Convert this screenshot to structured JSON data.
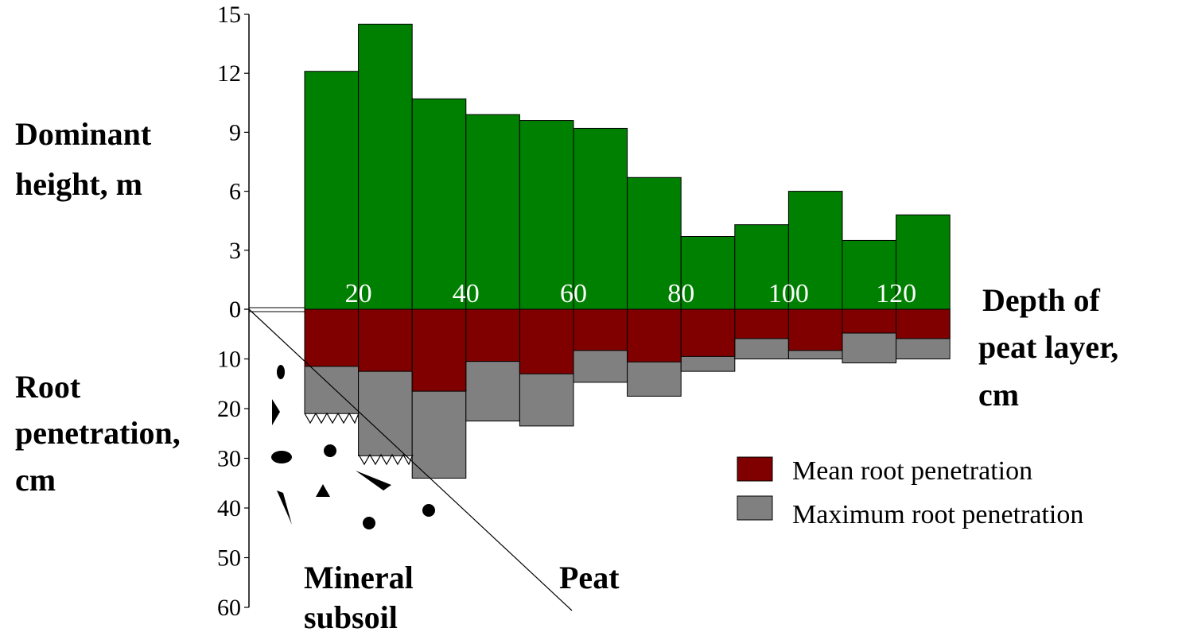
{
  "chart_data": {
    "type": "bar",
    "upper_axis_label": [
      "Dominant",
      "height, m"
    ],
    "lower_axis_label": [
      "Root",
      "penetration,",
      "cm"
    ],
    "x_axis_label": [
      "Depth of",
      "peat layer,",
      "cm"
    ],
    "x_tick_labels": [
      "20",
      "40",
      "60",
      "80",
      "100",
      "120"
    ],
    "upper_ticks": [
      "15",
      "12",
      "9",
      "6",
      "3",
      "0"
    ],
    "lower_ticks": [
      "0",
      "10",
      "20",
      "30",
      "40",
      "50",
      "60"
    ],
    "upper_ylim": [
      0,
      15
    ],
    "lower_ylim": [
      0,
      60
    ],
    "series": [
      {
        "name": "Dominant height",
        "color": "#008000",
        "values": [
          12.1,
          14.5,
          10.7,
          9.9,
          9.6,
          9.2,
          6.7,
          3.7,
          4.3,
          6.0,
          3.5,
          4.8
        ]
      },
      {
        "name": "Mean root penetration",
        "color": "#800000",
        "values": [
          11.5,
          12.5,
          16.5,
          10.5,
          13,
          8.3,
          10.6,
          9.5,
          5.9,
          8.3,
          4.8,
          5.9
        ]
      },
      {
        "name": "Maximum root penetration",
        "color": "#808080",
        "values": [
          21,
          29.5,
          34,
          22.5,
          23.5,
          14.7,
          17.5,
          12.5,
          10,
          10,
          10.8,
          10
        ]
      }
    ],
    "legend": [
      "Mean root penetration",
      "Maximum root penetration"
    ],
    "legend_position": "right",
    "annotations": {
      "mineral": [
        "Mineral",
        "subsoil"
      ],
      "peat": "Peat"
    },
    "grid": false
  }
}
